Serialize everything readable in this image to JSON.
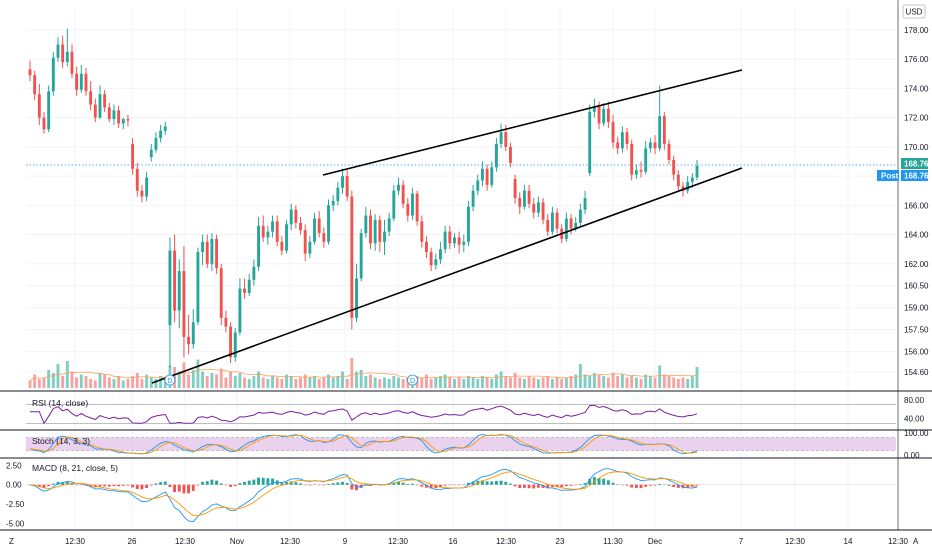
{
  "app": {
    "currency_label": "USD",
    "left_corner_label": "Z",
    "right_corner_label": "A"
  },
  "colors": {
    "up": "#26a69a",
    "down": "#ef5350",
    "vol_up": "#7fcdc3",
    "vol_down": "#f4a3a1",
    "trendline": "#000000",
    "rsi": "#7b1fa2",
    "stoch_band": "#e1bee7",
    "stoch_k": "#2196f3",
    "stoch_d": "#ff9800",
    "macd_line": "#2196f3",
    "signal_line": "#ff9800",
    "hist_up": "#26a69a",
    "hist_down": "#ef5350",
    "price_dotted": "#2196f3"
  },
  "chart_data": {
    "type": "candlestick",
    "price_axis": {
      "ticks": [
        "178.00",
        "176.00",
        "174.00",
        "172.00",
        "170.00",
        "168.00",
        "166.00",
        "164.00",
        "162.00",
        "160.50",
        "159.00",
        "157.50",
        "156.00",
        "154.60"
      ],
      "range": [
        153.5,
        179.5
      ]
    },
    "last_price": {
      "label": "168.76",
      "value": 168.76
    },
    "post_price": {
      "tag": "Post",
      "label": "168.76",
      "value": 168.76
    },
    "x_ticks": [
      "12:30",
      "26",
      "12:30",
      "Nov",
      "12:30",
      "9",
      "12:30",
      "16",
      "12:30",
      "23",
      "11:30",
      "Dec",
      "7",
      "12:30",
      "14",
      "12:30"
    ],
    "candles": [
      {
        "o": 175.3,
        "h": 175.9,
        "c": 174.9,
        "l": 174.5
      },
      {
        "o": 174.9,
        "h": 175.2,
        "c": 173.6,
        "l": 173.2
      },
      {
        "o": 173.6,
        "h": 174.3,
        "c": 172.0,
        "l": 171.5
      },
      {
        "o": 172.0,
        "h": 172.4,
        "c": 171.2,
        "l": 170.9
      },
      {
        "o": 171.2,
        "h": 174.2,
        "c": 173.8,
        "l": 171.0
      },
      {
        "o": 173.8,
        "h": 176.5,
        "c": 176.1,
        "l": 173.5
      },
      {
        "o": 176.1,
        "h": 177.5,
        "c": 177.0,
        "l": 175.8
      },
      {
        "o": 177.0,
        "h": 177.6,
        "c": 175.8,
        "l": 175.4
      },
      {
        "o": 175.8,
        "h": 178.1,
        "c": 176.5,
        "l": 175.5
      },
      {
        "o": 176.5,
        "h": 177.0,
        "c": 175.0,
        "l": 174.7
      },
      {
        "o": 175.0,
        "h": 175.5,
        "c": 173.9,
        "l": 173.5
      },
      {
        "o": 173.9,
        "h": 175.6,
        "c": 175.0,
        "l": 173.7
      },
      {
        "o": 175.0,
        "h": 175.4,
        "c": 173.8,
        "l": 173.5
      },
      {
        "o": 173.8,
        "h": 174.5,
        "c": 172.9,
        "l": 172.5
      },
      {
        "o": 172.9,
        "h": 173.3,
        "c": 172.0,
        "l": 171.7
      },
      {
        "o": 172.0,
        "h": 174.2,
        "c": 173.6,
        "l": 171.9
      },
      {
        "o": 173.6,
        "h": 173.9,
        "c": 172.7,
        "l": 172.4
      },
      {
        "o": 172.7,
        "h": 173.0,
        "c": 171.9,
        "l": 171.7
      },
      {
        "o": 171.9,
        "h": 172.9,
        "c": 172.5,
        "l": 171.5
      },
      {
        "o": 172.5,
        "h": 172.8,
        "c": 171.6,
        "l": 171.3
      },
      {
        "o": 171.6,
        "h": 172.0,
        "c": 171.9,
        "l": 171.2
      },
      {
        "o": 171.9,
        "h": 172.2,
        "c": 171.8,
        "l": 171.4
      },
      {
        "o": 170.2,
        "h": 170.6,
        "c": 168.5,
        "l": 168.1
      },
      {
        "o": 168.5,
        "h": 168.9,
        "c": 167.0,
        "l": 166.6
      },
      {
        "o": 167.0,
        "h": 167.4,
        "c": 166.6,
        "l": 166.2
      },
      {
        "o": 166.6,
        "h": 168.3,
        "c": 167.9,
        "l": 166.3
      },
      {
        "o": 169.3,
        "h": 170.2,
        "c": 169.8,
        "l": 169.0
      },
      {
        "o": 169.8,
        "h": 171.0,
        "c": 170.6,
        "l": 169.6
      },
      {
        "o": 170.6,
        "h": 171.5,
        "c": 171.1,
        "l": 170.3
      },
      {
        "o": 171.1,
        "h": 171.7,
        "c": 171.4,
        "l": 170.8
      },
      {
        "o": 157.8,
        "h": 163.8,
        "c": 162.9,
        "l": 154.9
      },
      {
        "o": 162.9,
        "h": 164.0,
        "c": 158.8,
        "l": 158.0
      },
      {
        "o": 158.8,
        "h": 162.3,
        "c": 161.5,
        "l": 157.6
      },
      {
        "o": 161.5,
        "h": 163.2,
        "c": 157.0,
        "l": 155.6
      },
      {
        "o": 157.0,
        "h": 158.5,
        "c": 156.5,
        "l": 155.8
      },
      {
        "o": 156.5,
        "h": 158.9,
        "c": 158.0,
        "l": 156.2
      },
      {
        "o": 158.0,
        "h": 163.1,
        "c": 162.8,
        "l": 157.8
      },
      {
        "o": 162.8,
        "h": 164.0,
        "c": 163.5,
        "l": 161.9
      },
      {
        "o": 163.5,
        "h": 164.0,
        "c": 162.0,
        "l": 161.7
      },
      {
        "o": 162.0,
        "h": 164.1,
        "c": 163.7,
        "l": 161.5
      },
      {
        "o": 163.7,
        "h": 164.0,
        "c": 161.7,
        "l": 161.3
      },
      {
        "o": 161.7,
        "h": 162.0,
        "c": 158.3,
        "l": 157.8
      },
      {
        "o": 158.3,
        "h": 158.8,
        "c": 157.7,
        "l": 157.3
      },
      {
        "o": 157.7,
        "h": 158.0,
        "c": 155.6,
        "l": 155.2
      },
      {
        "o": 155.6,
        "h": 157.6,
        "c": 157.3,
        "l": 155.3
      },
      {
        "o": 157.3,
        "h": 161.0,
        "c": 160.3,
        "l": 157.1
      },
      {
        "o": 160.3,
        "h": 161.0,
        "c": 160.0,
        "l": 159.6
      },
      {
        "o": 160.0,
        "h": 161.3,
        "c": 160.9,
        "l": 159.8
      },
      {
        "o": 160.9,
        "h": 162.3,
        "c": 161.8,
        "l": 160.5
      },
      {
        "o": 161.8,
        "h": 165.2,
        "c": 164.6,
        "l": 161.5
      },
      {
        "o": 164.6,
        "h": 165.3,
        "c": 163.8,
        "l": 163.5
      },
      {
        "o": 163.8,
        "h": 164.6,
        "c": 164.2,
        "l": 163.3
      },
      {
        "o": 164.2,
        "h": 165.3,
        "c": 164.9,
        "l": 163.8
      },
      {
        "o": 164.9,
        "h": 165.3,
        "c": 163.5,
        "l": 163.2
      },
      {
        "o": 163.5,
        "h": 163.9,
        "c": 162.9,
        "l": 162.6
      },
      {
        "o": 162.9,
        "h": 165.0,
        "c": 164.7,
        "l": 162.7
      },
      {
        "o": 164.7,
        "h": 166.1,
        "c": 165.7,
        "l": 164.3
      },
      {
        "o": 165.7,
        "h": 166.0,
        "c": 164.8,
        "l": 164.4
      },
      {
        "o": 164.8,
        "h": 165.2,
        "c": 164.3,
        "l": 164.0
      },
      {
        "o": 164.3,
        "h": 164.7,
        "c": 162.7,
        "l": 162.2
      },
      {
        "o": 162.7,
        "h": 163.9,
        "c": 163.5,
        "l": 162.4
      },
      {
        "o": 163.5,
        "h": 165.5,
        "c": 165.1,
        "l": 163.3
      },
      {
        "o": 165.1,
        "h": 165.6,
        "c": 164.1,
        "l": 163.8
      },
      {
        "o": 164.1,
        "h": 164.5,
        "c": 163.5,
        "l": 163.1
      },
      {
        "o": 163.5,
        "h": 166.4,
        "c": 166.0,
        "l": 163.3
      },
      {
        "o": 166.0,
        "h": 166.7,
        "c": 166.3,
        "l": 165.6
      },
      {
        "o": 166.3,
        "h": 167.6,
        "c": 167.2,
        "l": 166.0
      },
      {
        "o": 167.2,
        "h": 168.5,
        "c": 168.0,
        "l": 166.8
      },
      {
        "o": 168.0,
        "h": 168.4,
        "c": 166.6,
        "l": 166.3
      },
      {
        "o": 166.6,
        "h": 167.0,
        "c": 158.3,
        "l": 157.5
      },
      {
        "o": 158.3,
        "h": 162.0,
        "c": 161.0,
        "l": 158.0
      },
      {
        "o": 161.0,
        "h": 164.4,
        "c": 164.1,
        "l": 160.8
      },
      {
        "o": 164.1,
        "h": 165.9,
        "c": 165.3,
        "l": 163.8
      },
      {
        "o": 165.3,
        "h": 165.7,
        "c": 163.4,
        "l": 163.0
      },
      {
        "o": 163.4,
        "h": 165.4,
        "c": 165.0,
        "l": 162.9
      },
      {
        "o": 165.0,
        "h": 165.3,
        "c": 163.5,
        "l": 162.8
      },
      {
        "o": 163.5,
        "h": 165.0,
        "c": 164.2,
        "l": 162.6
      },
      {
        "o": 164.2,
        "h": 165.5,
        "c": 165.1,
        "l": 163.9
      },
      {
        "o": 165.1,
        "h": 167.4,
        "c": 167.0,
        "l": 164.9
      },
      {
        "o": 167.0,
        "h": 167.9,
        "c": 167.4,
        "l": 166.7
      },
      {
        "o": 167.4,
        "h": 167.7,
        "c": 166.1,
        "l": 165.8
      },
      {
        "o": 166.1,
        "h": 166.5,
        "c": 165.3,
        "l": 164.9
      },
      {
        "o": 165.3,
        "h": 167.2,
        "c": 166.8,
        "l": 165.0
      },
      {
        "o": 166.8,
        "h": 167.0,
        "c": 164.9,
        "l": 164.6
      },
      {
        "o": 164.9,
        "h": 165.3,
        "c": 163.5,
        "l": 163.1
      },
      {
        "o": 163.5,
        "h": 163.9,
        "c": 162.8,
        "l": 162.4
      },
      {
        "o": 162.8,
        "h": 163.1,
        "c": 161.9,
        "l": 161.5
      },
      {
        "o": 161.9,
        "h": 162.7,
        "c": 162.3,
        "l": 161.6
      },
      {
        "o": 162.3,
        "h": 163.5,
        "c": 163.0,
        "l": 162.0
      },
      {
        "o": 163.0,
        "h": 164.6,
        "c": 164.2,
        "l": 162.7
      },
      {
        "o": 164.2,
        "h": 164.6,
        "c": 163.4,
        "l": 163.0
      },
      {
        "o": 163.4,
        "h": 164.1,
        "c": 163.8,
        "l": 163.1
      },
      {
        "o": 163.8,
        "h": 164.2,
        "c": 163.3,
        "l": 162.7
      },
      {
        "o": 163.3,
        "h": 164.0,
        "c": 163.5,
        "l": 162.8
      },
      {
        "o": 163.5,
        "h": 166.3,
        "c": 165.9,
        "l": 163.2
      },
      {
        "o": 165.9,
        "h": 167.4,
        "c": 167.0,
        "l": 165.6
      },
      {
        "o": 167.0,
        "h": 168.1,
        "c": 167.7,
        "l": 166.7
      },
      {
        "o": 167.7,
        "h": 169.0,
        "c": 168.5,
        "l": 167.3
      },
      {
        "o": 168.5,
        "h": 168.8,
        "c": 167.4,
        "l": 167.0
      },
      {
        "o": 167.4,
        "h": 169.0,
        "c": 168.6,
        "l": 167.2
      },
      {
        "o": 168.6,
        "h": 170.6,
        "c": 170.2,
        "l": 168.3
      },
      {
        "o": 170.2,
        "h": 171.6,
        "c": 171.0,
        "l": 169.9
      },
      {
        "o": 171.0,
        "h": 171.5,
        "c": 170.0,
        "l": 169.7
      },
      {
        "o": 170.0,
        "h": 170.3,
        "c": 168.9,
        "l": 168.6
      },
      {
        "o": 167.8,
        "h": 168.1,
        "c": 166.5,
        "l": 166.1
      },
      {
        "o": 166.5,
        "h": 166.9,
        "c": 165.9,
        "l": 165.4
      },
      {
        "o": 165.9,
        "h": 167.4,
        "c": 167.0,
        "l": 165.7
      },
      {
        "o": 167.0,
        "h": 167.4,
        "c": 166.1,
        "l": 165.8
      },
      {
        "o": 166.1,
        "h": 166.5,
        "c": 165.5,
        "l": 165.1
      },
      {
        "o": 165.5,
        "h": 166.6,
        "c": 166.2,
        "l": 165.2
      },
      {
        "o": 166.2,
        "h": 166.5,
        "c": 165.0,
        "l": 164.7
      },
      {
        "o": 165.0,
        "h": 165.4,
        "c": 164.2,
        "l": 163.9
      },
      {
        "o": 164.2,
        "h": 165.9,
        "c": 165.5,
        "l": 164.0
      },
      {
        "o": 165.5,
        "h": 165.8,
        "c": 164.4,
        "l": 164.1
      },
      {
        "o": 164.4,
        "h": 164.7,
        "c": 163.7,
        "l": 163.4
      },
      {
        "o": 163.7,
        "h": 165.5,
        "c": 165.1,
        "l": 163.5
      },
      {
        "o": 165.1,
        "h": 165.4,
        "c": 164.4,
        "l": 164.0
      },
      {
        "o": 164.4,
        "h": 165.2,
        "c": 164.8,
        "l": 164.2
      },
      {
        "o": 164.8,
        "h": 166.1,
        "c": 165.7,
        "l": 164.5
      },
      {
        "o": 165.7,
        "h": 167.0,
        "c": 166.5,
        "l": 165.4
      },
      {
        "o": 168.2,
        "h": 172.9,
        "c": 172.4,
        "l": 168.0
      },
      {
        "o": 172.4,
        "h": 173.3,
        "c": 172.8,
        "l": 172.0
      },
      {
        "o": 172.8,
        "h": 173.1,
        "c": 171.6,
        "l": 171.2
      },
      {
        "o": 171.6,
        "h": 173.0,
        "c": 172.6,
        "l": 171.4
      },
      {
        "o": 172.6,
        "h": 173.1,
        "c": 171.7,
        "l": 171.3
      },
      {
        "o": 171.7,
        "h": 172.2,
        "c": 170.3,
        "l": 169.9
      },
      {
        "o": 170.3,
        "h": 170.7,
        "c": 169.9,
        "l": 169.5
      },
      {
        "o": 169.9,
        "h": 171.4,
        "c": 171.0,
        "l": 169.6
      },
      {
        "o": 171.0,
        "h": 171.3,
        "c": 170.2,
        "l": 169.8
      },
      {
        "o": 170.2,
        "h": 170.5,
        "c": 168.1,
        "l": 167.7
      },
      {
        "o": 168.1,
        "h": 168.8,
        "c": 168.4,
        "l": 167.8
      },
      {
        "o": 168.4,
        "h": 169.0,
        "c": 168.3,
        "l": 167.9
      },
      {
        "o": 168.3,
        "h": 170.4,
        "c": 169.9,
        "l": 168.1
      },
      {
        "o": 169.9,
        "h": 170.6,
        "c": 170.3,
        "l": 169.6
      },
      {
        "o": 170.3,
        "h": 170.8,
        "c": 169.9,
        "l": 169.5
      },
      {
        "o": 169.9,
        "h": 174.2,
        "c": 172.1,
        "l": 169.7
      },
      {
        "o": 172.1,
        "h": 172.4,
        "c": 170.2,
        "l": 169.8
      },
      {
        "o": 170.2,
        "h": 170.5,
        "c": 169.1,
        "l": 168.8
      },
      {
        "o": 169.1,
        "h": 169.4,
        "c": 168.1,
        "l": 167.7
      },
      {
        "o": 168.1,
        "h": 168.4,
        "c": 167.3,
        "l": 166.9
      },
      {
        "o": 167.3,
        "h": 167.6,
        "c": 167.0,
        "l": 166.6
      },
      {
        "o": 167.0,
        "h": 168.0,
        "c": 167.6,
        "l": 166.8
      },
      {
        "o": 167.6,
        "h": 168.2,
        "c": 167.9,
        "l": 167.2
      },
      {
        "o": 167.9,
        "h": 169.1,
        "c": 168.7,
        "l": 167.7
      }
    ],
    "volume": [
      0.25,
      0.45,
      0.3,
      0.35,
      0.6,
      0.5,
      0.8,
      0.4,
      0.9,
      0.55,
      0.35,
      0.45,
      0.4,
      0.3,
      0.25,
      0.5,
      0.45,
      0.35,
      0.3,
      0.4,
      0.25,
      0.3,
      0.4,
      0.5,
      0.3,
      0.45,
      0.35,
      0.3,
      0.4,
      0.35,
      0.75,
      0.7,
      0.55,
      0.85,
      0.45,
      0.6,
      0.95,
      0.55,
      0.4,
      0.5,
      0.45,
      0.65,
      0.35,
      0.55,
      0.4,
      0.5,
      0.35,
      0.3,
      0.4,
      0.55,
      0.35,
      0.3,
      0.4,
      0.35,
      0.3,
      0.45,
      0.4,
      0.3,
      0.35,
      0.45,
      0.35,
      0.4,
      0.3,
      0.35,
      0.45,
      0.35,
      0.4,
      0.55,
      0.3,
      1.0,
      0.55,
      0.6,
      0.4,
      0.45,
      0.35,
      0.3,
      0.35,
      0.3,
      0.4,
      0.35,
      0.3,
      0.35,
      0.3,
      0.4,
      0.35,
      0.45,
      0.3,
      0.35,
      0.4,
      0.45,
      0.35,
      0.3,
      0.35,
      0.3,
      0.4,
      0.35,
      0.3,
      0.4,
      0.35,
      0.3,
      0.45,
      0.55,
      0.4,
      0.35,
      0.5,
      0.35,
      0.3,
      0.4,
      0.35,
      0.3,
      0.35,
      0.4,
      0.3,
      0.35,
      0.3,
      0.35,
      0.4,
      0.45,
      0.8,
      0.45,
      0.4,
      0.5,
      0.45,
      0.4,
      0.35,
      0.5,
      0.4,
      0.45,
      0.35,
      0.4,
      0.35,
      0.3,
      0.45,
      0.4,
      0.35,
      0.75,
      0.45,
      0.4,
      0.35,
      0.3,
      0.35,
      0.3,
      0.4,
      0.7
    ],
    "volume_ma": true,
    "trendlines": [
      {
        "name": "upper",
        "x1": 0.356,
        "y1": 168.1,
        "x2": 0.815,
        "y2": 175.7
      },
      {
        "name": "lower",
        "x1": 0.16,
        "y1": 154.4,
        "x2": 0.815,
        "y2": 168.6
      },
      {
        "name": "top",
        "x1": 0.356,
        "y1": 168.1,
        "x2": 0.815,
        "y2": 175.7
      }
    ],
    "markers": [
      {
        "text": "D",
        "candle": 30
      },
      {
        "text": "D",
        "candle": 82
      }
    ],
    "rsi": {
      "title": "RSI (14, close)",
      "ticks": [
        "80.00",
        "40.00"
      ],
      "range": [
        20,
        95
      ],
      "upper": 70,
      "lower": 30
    },
    "stoch": {
      "title": "Stoch (14, 3, 3)",
      "ticks": [
        "100.00",
        "0.00"
      ],
      "range": [
        -5,
        105
      ],
      "upper": 80,
      "lower": 20
    },
    "macd": {
      "title": "MACD (8, 21, close, 5)",
      "ticks": [
        "2.50",
        "0.00",
        "-2.50",
        "-5.00"
      ],
      "range": [
        -5.6,
        3.2
      ]
    }
  }
}
